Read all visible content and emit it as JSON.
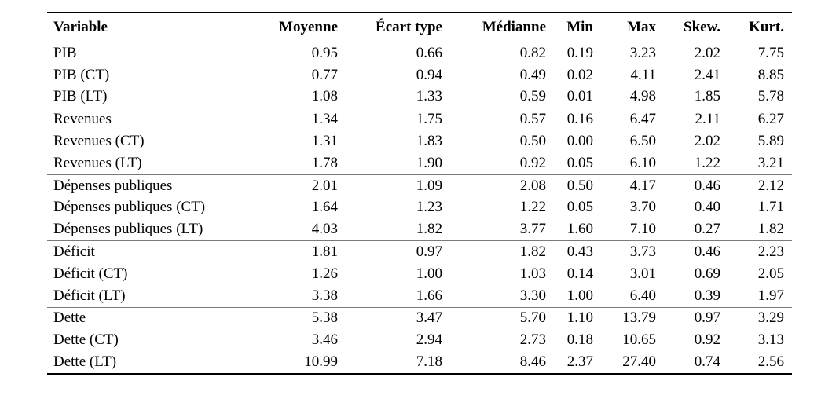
{
  "table": {
    "columns": [
      "Variable",
      "Moyenne",
      "Écart type",
      "Médianne",
      "Min",
      "Max",
      "Skew.",
      "Kurt."
    ],
    "groups": [
      {
        "rows": [
          {
            "variable": "PIB",
            "values": [
              "0.95",
              "0.66",
              "0.82",
              "0.19",
              "3.23",
              "2.02",
              "7.75"
            ]
          },
          {
            "variable": "PIB (CT)",
            "values": [
              "0.77",
              "0.94",
              "0.49",
              "0.02",
              "4.11",
              "2.41",
              "8.85"
            ]
          },
          {
            "variable": "PIB (LT)",
            "values": [
              "1.08",
              "1.33",
              "0.59",
              "0.01",
              "4.98",
              "1.85",
              "5.78"
            ]
          }
        ]
      },
      {
        "rows": [
          {
            "variable": "Revenues",
            "values": [
              "1.34",
              "1.75",
              "0.57",
              "0.16",
              "6.47",
              "2.11",
              "6.27"
            ]
          },
          {
            "variable": "Revenues (CT)",
            "values": [
              "1.31",
              "1.83",
              "0.50",
              "0.00",
              "6.50",
              "2.02",
              "5.89"
            ]
          },
          {
            "variable": "Revenues (LT)",
            "values": [
              "1.78",
              "1.90",
              "0.92",
              "0.05",
              "6.10",
              "1.22",
              "3.21"
            ]
          }
        ]
      },
      {
        "rows": [
          {
            "variable": "Dépenses publiques",
            "values": [
              "2.01",
              "1.09",
              "2.08",
              "0.50",
              "4.17",
              "0.46",
              "2.12"
            ]
          },
          {
            "variable": "Dépenses publiques (CT)",
            "values": [
              "1.64",
              "1.23",
              "1.22",
              "0.05",
              "3.70",
              "0.40",
              "1.71"
            ]
          },
          {
            "variable": "Dépenses publiques (LT)",
            "values": [
              "4.03",
              "1.82",
              "3.77",
              "1.60",
              "7.10",
              "0.27",
              "1.82"
            ]
          }
        ]
      },
      {
        "rows": [
          {
            "variable": "Déficit",
            "values": [
              "1.81",
              "0.97",
              "1.82",
              "0.43",
              "3.73",
              "0.46",
              "2.23"
            ]
          },
          {
            "variable": "Déficit (CT)",
            "values": [
              "1.26",
              "1.00",
              "1.03",
              "0.14",
              "3.01",
              "0.69",
              "2.05"
            ]
          },
          {
            "variable": "Déficit (LT)",
            "values": [
              "3.38",
              "1.66",
              "3.30",
              "1.00",
              "6.40",
              "0.39",
              "1.97"
            ]
          }
        ]
      },
      {
        "rows": [
          {
            "variable": "Dette",
            "values": [
              "5.38",
              "3.47",
              "5.70",
              "1.10",
              "13.79",
              "0.97",
              "3.29"
            ]
          },
          {
            "variable": "Dette (CT)",
            "values": [
              "3.46",
              "2.94",
              "2.73",
              "0.18",
              "10.65",
              "0.92",
              "3.13"
            ]
          },
          {
            "variable": "Dette (LT)",
            "values": [
              "10.99",
              "7.18",
              "8.46",
              "2.37",
              "27.40",
              "0.74",
              "2.56"
            ]
          }
        ]
      }
    ]
  }
}
